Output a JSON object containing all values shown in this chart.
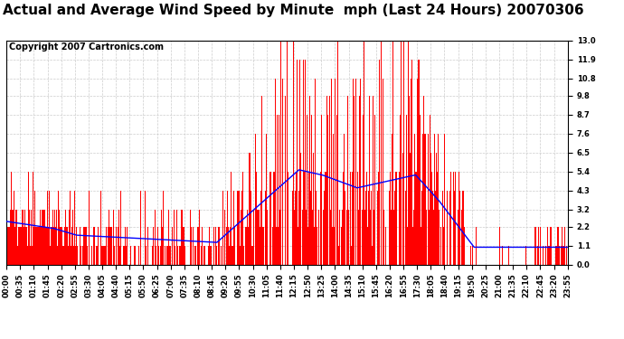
{
  "title": "Actual and Average Wind Speed by Minute  mph (Last 24 Hours) 20070306",
  "copyright_text": "Copyright 2007 Cartronics.com",
  "y_ticks": [
    0.0,
    1.1,
    2.2,
    3.2,
    4.3,
    5.4,
    6.5,
    7.6,
    8.7,
    9.8,
    10.8,
    11.9,
    13.0
  ],
  "x_tick_labels": [
    "00:00",
    "00:35",
    "01:10",
    "01:45",
    "02:20",
    "02:55",
    "03:30",
    "04:05",
    "04:40",
    "05:15",
    "05:50",
    "06:25",
    "07:00",
    "07:35",
    "08:10",
    "08:45",
    "09:20",
    "09:55",
    "10:30",
    "11:05",
    "11:40",
    "12:15",
    "12:50",
    "13:25",
    "14:00",
    "14:35",
    "15:10",
    "15:45",
    "16:20",
    "16:55",
    "17:30",
    "18:05",
    "18:40",
    "19:15",
    "19:50",
    "20:25",
    "21:00",
    "21:35",
    "22:10",
    "22:45",
    "23:20",
    "23:55"
  ],
  "bar_color": "#FF0000",
  "line_color": "#0000FF",
  "background_color": "#FFFFFF",
  "grid_color": "#CCCCCC",
  "title_fontsize": 11,
  "copyright_fontsize": 7,
  "tick_fontsize": 6,
  "ylim": [
    0.0,
    13.0
  ],
  "num_minutes": 1440
}
